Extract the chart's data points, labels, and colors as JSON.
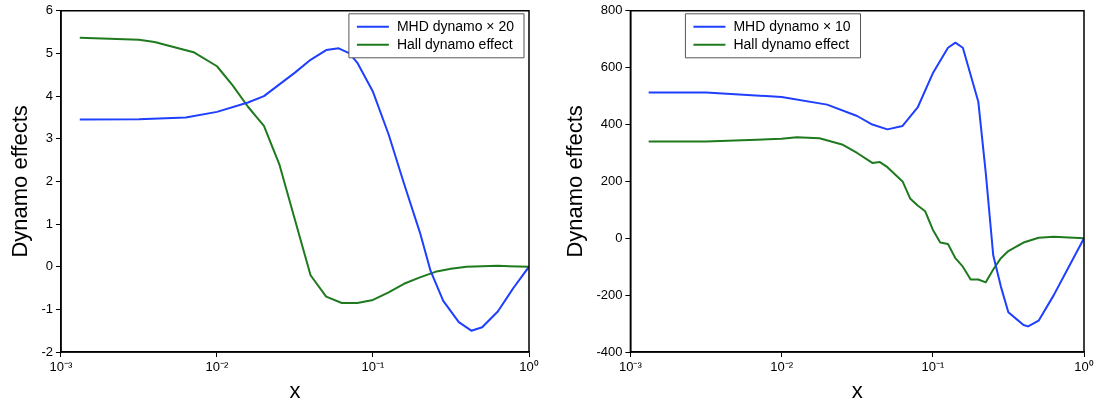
{
  "chart_data": [
    {
      "type": "line",
      "xlabel": "x",
      "ylabel": "Dynamo effects",
      "log": "x",
      "legend": "top right",
      "marker": "none",
      "line_style": "solid",
      "xlim": [
        0.001,
        1
      ],
      "xticks": [
        {
          "value": 0.001,
          "label": "10⁻³"
        },
        {
          "value": 0.01,
          "label": "10⁻²"
        },
        {
          "value": 0.1,
          "label": "10⁻¹"
        },
        {
          "value": 1,
          "label": "10⁰"
        }
      ],
      "ylim": [
        -2,
        6
      ],
      "yticks": [
        -2,
        -1,
        0,
        1,
        2,
        3,
        4,
        5,
        6
      ],
      "series": [
        {
          "name": "MHD dynamo × 20",
          "color": "#1f3fff",
          "x": [
            0.00132,
            0.00316,
            0.00631,
            0.01,
            0.0158,
            0.02,
            0.0316,
            0.0398,
            0.0501,
            0.0603,
            0.0708,
            0.0794,
            0.1,
            0.126,
            0.158,
            0.2,
            0.234,
            0.282,
            0.355,
            0.427,
            0.501,
            0.631,
            0.794,
            1
          ],
          "values": [
            3.45,
            3.46,
            3.5,
            3.63,
            3.85,
            4.0,
            4.55,
            4.85,
            5.08,
            5.12,
            5.0,
            4.78,
            4.1,
            3.1,
            1.95,
            0.8,
            -0.1,
            -0.8,
            -1.3,
            -1.5,
            -1.42,
            -1.05,
            -0.5,
            0
          ]
        },
        {
          "name": "Hall dynamo effect",
          "color": "#1f7a1f",
          "x": [
            0.00132,
            0.00316,
            0.00398,
            0.00708,
            0.01,
            0.0126,
            0.0158,
            0.02,
            0.0251,
            0.0316,
            0.0398,
            0.0501,
            0.0631,
            0.0794,
            0.1,
            0.126,
            0.158,
            0.2,
            0.251,
            0.316,
            0.398,
            0.631,
            1
          ],
          "values": [
            5.37,
            5.32,
            5.27,
            5.03,
            4.7,
            4.25,
            3.75,
            3.3,
            2.4,
            1.1,
            -0.2,
            -0.7,
            -0.85,
            -0.85,
            -0.78,
            -0.6,
            -0.4,
            -0.25,
            -0.12,
            -0.05,
            0,
            0.02,
            0
          ]
        }
      ]
    },
    {
      "type": "line",
      "xlabel": "x",
      "ylabel": "Dynamo effects",
      "log": "x",
      "legend": "top left",
      "marker": "none",
      "line_style": "solid",
      "xlim": [
        0.001,
        1
      ],
      "xticks": [
        {
          "value": 0.001,
          "label": "10⁻³"
        },
        {
          "value": 0.01,
          "label": "10⁻²"
        },
        {
          "value": 0.1,
          "label": "10⁻¹"
        },
        {
          "value": 1,
          "label": "10⁰"
        }
      ],
      "ylim": [
        -400,
        800
      ],
      "yticks": [
        -400,
        -200,
        0,
        200,
        400,
        600,
        800
      ],
      "series": [
        {
          "name": "MHD dynamo × 10",
          "color": "#1f3fff",
          "x": [
            0.00132,
            0.00316,
            0.01,
            0.02,
            0.0316,
            0.0398,
            0.0501,
            0.0631,
            0.0794,
            0.1,
            0.126,
            0.141,
            0.158,
            0.2,
            0.224,
            0.251,
            0.282,
            0.316,
            0.398,
            0.427,
            0.501,
            0.631,
            0.794,
            1
          ],
          "values": [
            513,
            513,
            497,
            470,
            430,
            400,
            383,
            395,
            460,
            580,
            670,
            688,
            670,
            480,
            230,
            -60,
            -170,
            -260,
            -305,
            -310,
            -290,
            -200,
            -100,
            0
          ]
        },
        {
          "name": "Hall dynamo effect",
          "color": "#1f7a1f",
          "x": [
            0.00132,
            0.00316,
            0.01,
            0.0126,
            0.0178,
            0.0251,
            0.0316,
            0.0398,
            0.0447,
            0.0501,
            0.0631,
            0.0708,
            0.0794,
            0.0891,
            0.1,
            0.112,
            0.126,
            0.141,
            0.158,
            0.178,
            0.2,
            0.224,
            0.251,
            0.282,
            0.316,
            0.398,
            0.501,
            0.631,
            1
          ],
          "values": [
            340,
            340,
            350,
            355,
            352,
            330,
            300,
            265,
            268,
            250,
            200,
            140,
            115,
            95,
            30,
            -15,
            -20,
            -70,
            -100,
            -145,
            -145,
            -155,
            -110,
            -70,
            -45,
            -15,
            2,
            5,
            0
          ]
        }
      ]
    }
  ]
}
